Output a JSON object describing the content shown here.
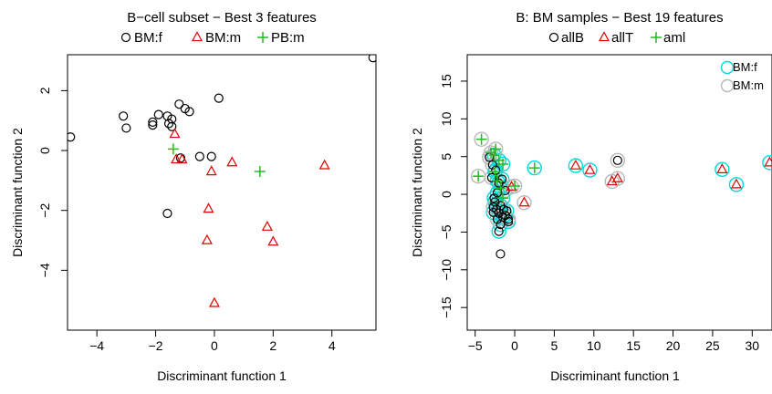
{
  "colors": {
    "black": "#000000",
    "red": "#e00000",
    "green": "#22bb22",
    "cyan": "#00d8d8",
    "gray": "#b8b8b8"
  },
  "chart_data": [
    {
      "type": "scatter",
      "title": "B−cell subset − Best 3 features",
      "xlabel": "Discriminant function 1",
      "ylabel": "Discriminant function 2",
      "xlim": [
        -5,
        5.5
      ],
      "ylim": [
        -6,
        3.2
      ],
      "xticks": [
        -4,
        -2,
        0,
        2,
        4
      ],
      "yticks": [
        -4,
        -2,
        0,
        2
      ],
      "xtick_labels": [
        "−4",
        "−2",
        "0",
        "2",
        "4"
      ],
      "ytick_labels": [
        "−4",
        "−2",
        "0",
        "2"
      ],
      "legend_position": "top",
      "legend": [
        {
          "label": "BM:f",
          "marker": "circle",
          "color": "black"
        },
        {
          "label": "BM:m",
          "marker": "triangle",
          "color": "red"
        },
        {
          "label": "PB:m",
          "marker": "plus",
          "color": "green"
        }
      ],
      "series": [
        {
          "name": "BM:f",
          "marker": "circle",
          "color": "black",
          "points": [
            [
              -4.9,
              0.45
            ],
            [
              -3.1,
              1.15
            ],
            [
              -3.0,
              0.75
            ],
            [
              -2.1,
              0.95
            ],
            [
              -2.1,
              0.85
            ],
            [
              -1.9,
              1.2
            ],
            [
              -1.6,
              1.15
            ],
            [
              -1.55,
              0.9
            ],
            [
              -1.45,
              0.8
            ],
            [
              -1.45,
              1.05
            ],
            [
              -1.2,
              1.55
            ],
            [
              -1.0,
              1.4
            ],
            [
              -0.85,
              1.3
            ],
            [
              0.15,
              1.75
            ],
            [
              -1.6,
              -2.1
            ],
            [
              -1.15,
              -0.25
            ],
            [
              -0.5,
              -0.2
            ],
            [
              -0.1,
              -0.2
            ],
            [
              5.4,
              3.1
            ]
          ]
        },
        {
          "name": "BM:m",
          "marker": "triangle",
          "color": "red",
          "points": [
            [
              -1.35,
              0.55
            ],
            [
              -1.3,
              -0.3
            ],
            [
              -1.1,
              -0.3
            ],
            [
              -0.1,
              -0.7
            ],
            [
              0.6,
              -0.4
            ],
            [
              -0.2,
              -1.95
            ],
            [
              -0.25,
              -3.0
            ],
            [
              1.8,
              -2.55
            ],
            [
              2.0,
              -3.05
            ],
            [
              0.0,
              -5.1
            ],
            [
              3.75,
              -0.5
            ]
          ]
        },
        {
          "name": "PB:m",
          "marker": "plus",
          "color": "green",
          "points": [
            [
              -1.4,
              0.05
            ],
            [
              1.55,
              -0.7
            ]
          ]
        }
      ]
    },
    {
      "type": "scatter",
      "title": "B: BM samples − Best 19 features",
      "xlabel": "Discriminant function 1",
      "ylabel": "Discriminant function 2",
      "xlim": [
        -6,
        32.5
      ],
      "ylim": [
        -18,
        18.5
      ],
      "xticks": [
        -5,
        0,
        5,
        10,
        15,
        20,
        25,
        30
      ],
      "yticks": [
        -15,
        -10,
        -5,
        0,
        5,
        10,
        15
      ],
      "xtick_labels": [
        "−5",
        "0",
        "5",
        "10",
        "15",
        "20",
        "25",
        "30"
      ],
      "ytick_labels": [
        "−15",
        "−10",
        "−5",
        "0",
        "5",
        "10",
        "15"
      ],
      "legend_position": "top",
      "legend": [
        {
          "label": "allB",
          "marker": "circle",
          "color": "black"
        },
        {
          "label": "allT",
          "marker": "triangle",
          "color": "red"
        },
        {
          "label": "aml",
          "marker": "plus",
          "color": "green"
        }
      ],
      "inset_legend_position": "top-right",
      "inset_legend": [
        {
          "label": "BM:f",
          "marker": "ring",
          "color": "cyan"
        },
        {
          "label": "BM:m",
          "marker": "ring",
          "color": "gray"
        }
      ],
      "series": [
        {
          "name": "allB",
          "marker": "circle",
          "color": "black",
          "ring": "cyan",
          "points": [
            [
              -2.5,
              -1.0
            ],
            [
              -2.3,
              -2.0
            ],
            [
              -2.0,
              -2.5
            ],
            [
              -1.8,
              -1.5
            ],
            [
              -1.5,
              -3.0
            ],
            [
              -1.2,
              -2.8
            ],
            [
              -1.8,
              -4.0
            ],
            [
              -2.6,
              -0.5
            ],
            [
              -2.2,
              0.2
            ],
            [
              -2.0,
              1.5
            ],
            [
              -1.6,
              2.0
            ],
            [
              -2.4,
              3.2
            ],
            [
              -2.0,
              -4.9
            ],
            [
              -0.8,
              -3.6
            ],
            [
              -1.0,
              -2.2
            ],
            [
              -2.7,
              -2.4
            ]
          ]
        },
        {
          "name": "allB",
          "marker": "circle",
          "color": "black",
          "ring": "gray",
          "points": [
            [
              -3.2,
              4.9
            ],
            [
              -2.8,
              3.9
            ],
            [
              -2.9,
              2.2
            ],
            [
              -2.7,
              -1.7
            ],
            [
              -2.2,
              -3.3
            ],
            [
              -1.4,
              -2.0
            ],
            [
              -0.8,
              -3.3
            ],
            [
              13.0,
              4.5
            ],
            [
              -1.2,
              0.5
            ]
          ]
        },
        {
          "name": "allB",
          "marker": "circle",
          "color": "black",
          "points": [
            [
              -1.8,
              -7.9
            ]
          ]
        },
        {
          "name": "allT",
          "marker": "triangle",
          "color": "red",
          "ring": "cyan",
          "points": [
            [
              7.7,
              3.8
            ],
            [
              9.5,
              3.2
            ],
            [
              26.2,
              3.3
            ],
            [
              28.0,
              1.3
            ],
            [
              32.2,
              4.2
            ]
          ]
        },
        {
          "name": "allT",
          "marker": "triangle",
          "color": "red",
          "ring": "gray",
          "points": [
            [
              1.2,
              -1.1
            ],
            [
              12.3,
              1.7
            ],
            [
              13.0,
              2.1
            ],
            [
              -0.4,
              1.0
            ]
          ]
        },
        {
          "name": "aml",
          "marker": "plus",
          "color": "green",
          "ring": "cyan",
          "points": [
            [
              -2.6,
              5.2
            ],
            [
              -2.0,
              4.5
            ],
            [
              -1.5,
              4.0
            ],
            [
              -2.5,
              3.0
            ],
            [
              -1.8,
              0.8
            ],
            [
              -1.5,
              -0.5
            ],
            [
              -2.2,
              1.8
            ],
            [
              2.5,
              3.5
            ]
          ]
        },
        {
          "name": "aml",
          "marker": "plus",
          "color": "green",
          "ring": "gray",
          "points": [
            [
              -4.2,
              7.3
            ],
            [
              -4.6,
              2.4
            ],
            [
              -3.0,
              5.5
            ],
            [
              -2.4,
              6.0
            ],
            [
              0.0,
              1.1
            ]
          ]
        }
      ]
    }
  ]
}
